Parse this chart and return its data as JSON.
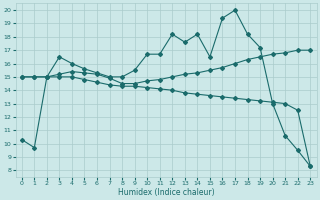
{
  "xlabel": "Humidex (Indice chaleur)",
  "bg_color": "#cce8e8",
  "grid_color": "#aacccc",
  "line_color": "#1a6b6b",
  "xlim": [
    -0.5,
    23.5
  ],
  "ylim": [
    7.5,
    20.5
  ],
  "xticks": [
    0,
    1,
    2,
    3,
    4,
    5,
    6,
    7,
    8,
    9,
    10,
    11,
    12,
    13,
    14,
    15,
    16,
    17,
    18,
    19,
    20,
    21,
    22,
    23
  ],
  "yticks": [
    8,
    9,
    10,
    11,
    12,
    13,
    14,
    15,
    16,
    17,
    18,
    19,
    20
  ],
  "line1_x": [
    0,
    1,
    2,
    3,
    4,
    5,
    6,
    7,
    8,
    9,
    10,
    11,
    12,
    13,
    14,
    15,
    16,
    17,
    18,
    19,
    20,
    21,
    22,
    23
  ],
  "line1_y": [
    10.3,
    9.7,
    15.0,
    16.5,
    16.0,
    15.6,
    15.3,
    15.0,
    15.0,
    15.5,
    16.7,
    16.7,
    18.2,
    17.6,
    18.2,
    16.5,
    19.4,
    20.0,
    18.2,
    17.2,
    13.0,
    10.6,
    9.5,
    8.3
  ],
  "line2_x": [
    0,
    1,
    2,
    3,
    4,
    5,
    6,
    7,
    8,
    9,
    10,
    11,
    12,
    13,
    14,
    15,
    16,
    17,
    18,
    19,
    20,
    21,
    22,
    23
  ],
  "line2_y": [
    15.0,
    15.0,
    15.0,
    15.2,
    15.4,
    15.3,
    15.2,
    14.9,
    14.5,
    14.5,
    14.7,
    14.8,
    15.0,
    15.2,
    15.3,
    15.5,
    15.7,
    16.0,
    16.3,
    16.5,
    16.7,
    16.8,
    17.0,
    17.0
  ],
  "line3_x": [
    0,
    1,
    2,
    3,
    4,
    5,
    6,
    7,
    8,
    9,
    10,
    11,
    12,
    13,
    14,
    15,
    16,
    17,
    18,
    19,
    20,
    21,
    22,
    23
  ],
  "line3_y": [
    15.0,
    15.0,
    15.0,
    15.0,
    15.0,
    14.8,
    14.6,
    14.4,
    14.3,
    14.3,
    14.2,
    14.1,
    14.0,
    13.8,
    13.7,
    13.6,
    13.5,
    13.4,
    13.3,
    13.2,
    13.1,
    13.0,
    12.5,
    8.3
  ],
  "markersize": 2.0,
  "linewidth": 0.8
}
